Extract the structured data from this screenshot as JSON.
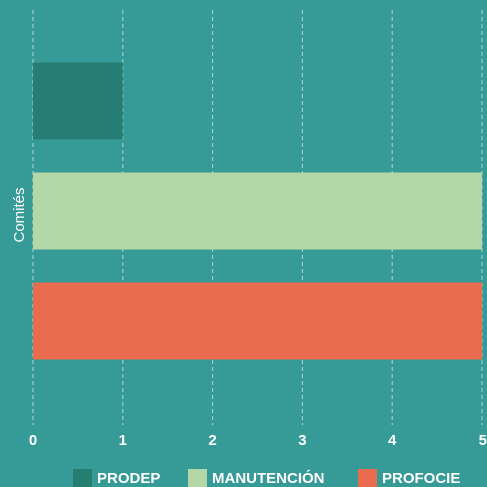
{
  "chart_data": {
    "type": "barh",
    "y_label": "Comités",
    "categories": [
      null
    ],
    "series": [
      {
        "name": "PRODEP",
        "color": "#267d72",
        "values": [
          1
        ]
      },
      {
        "name": "MANUTENCIÓN",
        "color": "#b4d7a8",
        "values": [
          5
        ]
      },
      {
        "name": "PROFOCIE",
        "color": "#e86c4d",
        "values": [
          5
        ]
      }
    ],
    "xlim": [
      0,
      5
    ],
    "xticks": [
      0,
      1,
      2,
      3,
      4,
      5
    ],
    "grid": true,
    "legend": "bottom"
  }
}
